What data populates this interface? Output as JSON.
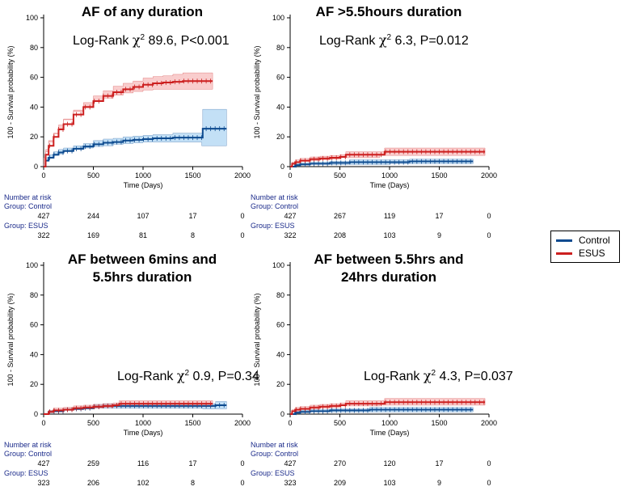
{
  "legend": {
    "items": [
      {
        "label": "Control",
        "color": "#0d4a8f"
      },
      {
        "label": "ESUS",
        "color": "#cc1f1f"
      }
    ]
  },
  "colors": {
    "control_line": "#0d4a8f",
    "control_band": "#a9d3f2",
    "esus_line": "#cc1f1f",
    "esus_band": "#f6b8b8",
    "risk_text": "#1a2a8a"
  },
  "chart_data": [
    {
      "type": "line",
      "title": "AF of any duration",
      "subtitle": "",
      "annotation": {
        "prefix": "Log-Rank ",
        "chi": "χ",
        "sup": "2",
        "rest": " 89.6, P<0.001"
      },
      "xlabel": "Time (Days)",
      "ylabel": "100 - Survival probability (%)",
      "xlim": [
        0,
        2000
      ],
      "ylim": [
        0,
        100
      ],
      "xticks": [
        0,
        500,
        1000,
        1500,
        2000
      ],
      "yticks": [
        0,
        20,
        40,
        60,
        80,
        100
      ],
      "series": [
        {
          "name": "Control",
          "x": [
            0,
            20,
            50,
            100,
            150,
            200,
            300,
            400,
            500,
            600,
            700,
            800,
            900,
            1000,
            1100,
            1200,
            1300,
            1400,
            1500,
            1590,
            1600,
            1700,
            1840
          ],
          "y": [
            0,
            4,
            6,
            8,
            9.5,
            10.5,
            12,
            13.5,
            15,
            16,
            16.5,
            17.5,
            18,
            18.5,
            19,
            19,
            19.5,
            19.5,
            19.5,
            19.5,
            25.5,
            25.5,
            25.5
          ],
          "lower": [
            0,
            2,
            4,
            6,
            7.5,
            8.5,
            10,
            11.5,
            12.5,
            13.5,
            14,
            15,
            15.5,
            16,
            16.5,
            16.5,
            16.5,
            16.5,
            16.5,
            16.5,
            14,
            14,
            14
          ],
          "upper": [
            0,
            6,
            8,
            10,
            11.5,
            12.5,
            14,
            15.5,
            17.5,
            18.5,
            19,
            20,
            20.5,
            21,
            21.5,
            21.5,
            22.5,
            22.5,
            22.5,
            22.5,
            38.5,
            38.5,
            38.5
          ]
        },
        {
          "name": "ESUS",
          "x": [
            0,
            20,
            50,
            100,
            150,
            200,
            300,
            400,
            500,
            600,
            700,
            800,
            900,
            1000,
            1100,
            1200,
            1300,
            1400,
            1500,
            1600,
            1700
          ],
          "y": [
            0,
            8,
            14,
            20,
            25,
            28.5,
            35,
            40,
            44,
            47.5,
            50,
            52,
            53.5,
            55,
            56,
            56.5,
            57,
            57.5,
            57.5,
            57.5,
            57.5
          ],
          "lower": [
            0,
            6,
            11.5,
            17.5,
            22,
            25.5,
            32,
            37,
            40.5,
            44,
            46,
            48,
            49.5,
            50.5,
            51.5,
            52,
            52,
            52,
            52,
            52,
            52
          ],
          "upper": [
            0,
            10,
            16.5,
            22.5,
            28,
            31.5,
            38,
            43,
            47.5,
            51,
            54,
            56,
            57.5,
            59.5,
            60.5,
            61,
            62,
            63,
            63,
            63,
            63
          ]
        }
      ],
      "risk_table": {
        "header": "Number at risk",
        "groups": [
          {
            "label": "Group: Control",
            "values": [
              "427",
              "244",
              "107",
              "17",
              "0"
            ]
          },
          {
            "label": "Group: ESUS",
            "values": [
              "322",
              "169",
              "81",
              "8",
              "0"
            ]
          }
        ]
      }
    },
    {
      "type": "line",
      "title": "AF >5.5hours duration",
      "subtitle": "",
      "annotation": {
        "prefix": "Log-Rank ",
        "chi": "χ",
        "sup": "2",
        "rest": " 6.3, P=0.012"
      },
      "xlabel": "Time (Days)",
      "ylabel": "100 - Survival probability (%)",
      "xlim": [
        0,
        2000
      ],
      "ylim": [
        0,
        100
      ],
      "xticks": [
        0,
        500,
        1000,
        1500,
        2000
      ],
      "yticks": [
        0,
        20,
        40,
        60,
        80,
        100
      ],
      "series": [
        {
          "name": "Control",
          "x": [
            0,
            50,
            100,
            200,
            400,
            600,
            800,
            1000,
            1200,
            1400,
            1600,
            1840
          ],
          "y": [
            0,
            1,
            1.5,
            2,
            2.5,
            3,
            3,
            3,
            3.5,
            3.5,
            3.5,
            3.5
          ],
          "lower": [
            0,
            0,
            0.5,
            1,
            1.5,
            1.5,
            1.5,
            1.5,
            2,
            2,
            2,
            2
          ],
          "upper": [
            0,
            2,
            2.5,
            3,
            3.5,
            4.5,
            4.5,
            4.5,
            5,
            5,
            5,
            5
          ]
        },
        {
          "name": "ESUS",
          "x": [
            0,
            20,
            50,
            100,
            200,
            300,
            400,
            500,
            560,
            700,
            900,
            950,
            1200,
            1500,
            1800,
            1960
          ],
          "y": [
            0,
            2,
            3,
            4,
            5,
            5.5,
            6,
            6.5,
            8,
            8,
            8,
            10,
            10,
            10,
            10,
            10
          ],
          "lower": [
            0,
            1,
            1.5,
            2.5,
            3.5,
            4,
            4.5,
            5,
            6,
            6,
            6,
            7.5,
            7.5,
            7.5,
            7.5,
            7.5
          ],
          "upper": [
            0,
            3,
            4.5,
            5.5,
            6.5,
            7,
            7.5,
            8,
            10,
            10,
            10,
            12.5,
            12.5,
            12.5,
            12.5,
            12.5
          ]
        }
      ],
      "risk_table": {
        "header": "Number at risk",
        "groups": [
          {
            "label": "Group: Control",
            "values": [
              "427",
              "267",
              "119",
              "17",
              "0"
            ]
          },
          {
            "label": "Group: ESUS",
            "values": [
              "322",
              "208",
              "103",
              "9",
              "0"
            ]
          }
        ]
      }
    },
    {
      "type": "line",
      "title": "AF between 6mins and",
      "subtitle": "5.5hrs duration",
      "annotation": {
        "prefix": "Log-Rank ",
        "chi": "χ",
        "sup": "2",
        "rest": " 0.9, P=0.34"
      },
      "xlabel": "Time (Days)",
      "ylabel": "100 - Survival probability (%)",
      "xlim": [
        0,
        2000
      ],
      "ylim": [
        0,
        100
      ],
      "xticks": [
        0,
        500,
        1000,
        1500,
        2000
      ],
      "yticks": [
        0,
        20,
        40,
        60,
        80,
        100
      ],
      "series": [
        {
          "name": "Control",
          "x": [
            0,
            50,
            100,
            200,
            300,
            400,
            500,
            600,
            700,
            800,
            1000,
            1200,
            1400,
            1600,
            1730,
            1840
          ],
          "y": [
            0,
            1.5,
            2,
            3,
            3.5,
            4,
            5,
            5.5,
            5.5,
            5.5,
            5.5,
            5.5,
            5.5,
            5.5,
            6,
            6
          ],
          "lower": [
            0,
            0.5,
            1,
            2,
            2.5,
            3,
            3.5,
            4,
            4,
            4,
            4,
            4,
            4,
            4,
            3.5,
            3.5
          ],
          "upper": [
            0,
            2.5,
            3,
            4,
            4.5,
            5,
            6.5,
            7,
            7,
            7,
            7,
            7,
            7,
            7,
            8.5,
            8.5
          ]
        },
        {
          "name": "ESUS",
          "x": [
            0,
            50,
            100,
            200,
            300,
            400,
            500,
            600,
            700,
            760,
            1000,
            1200,
            1400,
            1600,
            1700
          ],
          "y": [
            0,
            1.5,
            2.5,
            3,
            4,
            4.5,
            5,
            5.5,
            6,
            7,
            7,
            7,
            7,
            7,
            7
          ],
          "lower": [
            0,
            0.5,
            1,
            1.5,
            2.5,
            3,
            3.5,
            4,
            4.5,
            5,
            5,
            5,
            5,
            5,
            5
          ],
          "upper": [
            0,
            2.5,
            4,
            4.5,
            5.5,
            6,
            6.5,
            7,
            7.5,
            9,
            9,
            9,
            9,
            9,
            9
          ]
        }
      ],
      "risk_table": {
        "header": "Number at risk",
        "groups": [
          {
            "label": "Group: Control",
            "values": [
              "427",
              "259",
              "116",
              "17",
              "0"
            ]
          },
          {
            "label": "Group: ESUS",
            "values": [
              "323",
              "206",
              "102",
              "8",
              "0"
            ]
          }
        ]
      }
    },
    {
      "type": "line",
      "title": "AF between 5.5hrs and",
      "subtitle": "24hrs duration",
      "annotation": {
        "prefix": "Log-Rank ",
        "chi": "χ",
        "sup": "2",
        "rest": " 4.3, P=0.037"
      },
      "xlabel": "Time (Days)",
      "ylabel": "100 - Survival probability (%)",
      "xlim": [
        0,
        2000
      ],
      "ylim": [
        0,
        100
      ],
      "xticks": [
        0,
        500,
        1000,
        1500,
        2000
      ],
      "yticks": [
        0,
        20,
        40,
        60,
        80,
        100
      ],
      "series": [
        {
          "name": "Control",
          "x": [
            0,
            50,
            100,
            200,
            400,
            600,
            800,
            1000,
            1200,
            1400,
            1600,
            1840
          ],
          "y": [
            0,
            1,
            1.5,
            2,
            2.5,
            2.5,
            3,
            3,
            3,
            3,
            3,
            3
          ],
          "lower": [
            0,
            0,
            0.5,
            1,
            1.5,
            1.5,
            1.5,
            1.5,
            1.5,
            1.5,
            1.5,
            1.5
          ],
          "upper": [
            0,
            2,
            2.5,
            3,
            3.5,
            3.5,
            4.5,
            4.5,
            4.5,
            4.5,
            4.5,
            4.5
          ]
        },
        {
          "name": "ESUS",
          "x": [
            0,
            20,
            50,
            100,
            200,
            300,
            400,
            500,
            560,
            700,
            900,
            950,
            1200,
            1500,
            1800,
            1960
          ],
          "y": [
            0,
            2,
            3,
            3.5,
            4.5,
            5,
            5.5,
            6,
            7,
            7,
            7,
            8,
            8,
            8,
            8,
            8
          ],
          "lower": [
            0,
            1,
            1.5,
            2,
            3,
            3.5,
            4,
            4.5,
            5.5,
            5.5,
            5.5,
            6,
            6,
            6,
            6,
            6
          ],
          "upper": [
            0,
            3,
            4.5,
            5,
            6,
            6.5,
            7,
            7.5,
            9,
            9,
            9,
            10.5,
            10.5,
            10.5,
            10.5,
            10.5
          ]
        }
      ],
      "risk_table": {
        "header": "Number at risk",
        "groups": [
          {
            "label": "Group: Control",
            "values": [
              "427",
              "270",
              "120",
              "17",
              "0"
            ]
          },
          {
            "label": "Group: ESUS",
            "values": [
              "323",
              "209",
              "103",
              "9",
              "0"
            ]
          }
        ]
      }
    }
  ]
}
